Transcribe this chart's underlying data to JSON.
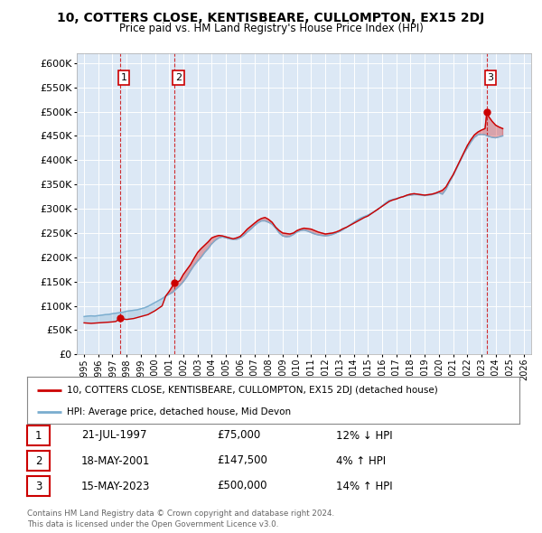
{
  "title": "10, COTTERS CLOSE, KENTISBEARE, CULLOMPTON, EX15 2DJ",
  "subtitle": "Price paid vs. HM Land Registry's House Price Index (HPI)",
  "legend_property": "10, COTTERS CLOSE, KENTISBEARE, CULLOMPTON, EX15 2DJ (detached house)",
  "legend_hpi": "HPI: Average price, detached house, Mid Devon",
  "footer": "Contains HM Land Registry data © Crown copyright and database right 2024.\nThis data is licensed under the Open Government Licence v3.0.",
  "transactions": [
    {
      "num": 1,
      "date": "21-JUL-1997",
      "price": "£75,000",
      "hpi": "12% ↓ HPI",
      "x_year": 1997.55
    },
    {
      "num": 2,
      "date": "18-MAY-2001",
      "price": "£147,500",
      "hpi": "4% ↑ HPI",
      "x_year": 2001.38
    },
    {
      "num": 3,
      "date": "15-MAY-2023",
      "price": "£500,000",
      "hpi": "14% ↑ HPI",
      "x_year": 2023.38
    }
  ],
  "property_prices": [
    [
      1995.0,
      65000
    ],
    [
      1995.25,
      64500
    ],
    [
      1995.5,
      64000
    ],
    [
      1995.75,
      64500
    ],
    [
      1996.0,
      65000
    ],
    [
      1996.25,
      65500
    ],
    [
      1996.5,
      66000
    ],
    [
      1996.75,
      66500
    ],
    [
      1997.0,
      67000
    ],
    [
      1997.25,
      68000
    ],
    [
      1997.55,
      75000
    ],
    [
      1997.75,
      73000
    ],
    [
      1998.0,
      72000
    ],
    [
      1998.25,
      73000
    ],
    [
      1998.5,
      74000
    ],
    [
      1998.75,
      76000
    ],
    [
      1999.0,
      78000
    ],
    [
      1999.25,
      80000
    ],
    [
      1999.5,
      82000
    ],
    [
      1999.75,
      86000
    ],
    [
      2000.0,
      90000
    ],
    [
      2000.25,
      95000
    ],
    [
      2000.5,
      100000
    ],
    [
      2000.75,
      120000
    ],
    [
      2001.0,
      130000
    ],
    [
      2001.38,
      147500
    ],
    [
      2001.5,
      148000
    ],
    [
      2001.75,
      152000
    ],
    [
      2002.0,
      165000
    ],
    [
      2002.25,
      175000
    ],
    [
      2002.5,
      185000
    ],
    [
      2002.75,
      198000
    ],
    [
      2003.0,
      210000
    ],
    [
      2003.25,
      218000
    ],
    [
      2003.5,
      225000
    ],
    [
      2003.75,
      232000
    ],
    [
      2004.0,
      240000
    ],
    [
      2004.25,
      243000
    ],
    [
      2004.5,
      245000
    ],
    [
      2004.75,
      244000
    ],
    [
      2005.0,
      242000
    ],
    [
      2005.25,
      240000
    ],
    [
      2005.5,
      238000
    ],
    [
      2005.75,
      240000
    ],
    [
      2006.0,
      243000
    ],
    [
      2006.25,
      250000
    ],
    [
      2006.5,
      258000
    ],
    [
      2006.75,
      264000
    ],
    [
      2007.0,
      270000
    ],
    [
      2007.25,
      276000
    ],
    [
      2007.5,
      280000
    ],
    [
      2007.75,
      282000
    ],
    [
      2008.0,
      278000
    ],
    [
      2008.25,
      272000
    ],
    [
      2008.5,
      262000
    ],
    [
      2008.75,
      255000
    ],
    [
      2009.0,
      250000
    ],
    [
      2009.25,
      249000
    ],
    [
      2009.5,
      248000
    ],
    [
      2009.75,
      250000
    ],
    [
      2010.0,
      255000
    ],
    [
      2010.25,
      258000
    ],
    [
      2010.5,
      260000
    ],
    [
      2010.75,
      259000
    ],
    [
      2011.0,
      258000
    ],
    [
      2011.25,
      255000
    ],
    [
      2011.5,
      252000
    ],
    [
      2011.75,
      250000
    ],
    [
      2012.0,
      248000
    ],
    [
      2012.25,
      249000
    ],
    [
      2012.5,
      250000
    ],
    [
      2012.75,
      252000
    ],
    [
      2013.0,
      255000
    ],
    [
      2013.25,
      259000
    ],
    [
      2013.5,
      262000
    ],
    [
      2013.75,
      266000
    ],
    [
      2014.0,
      270000
    ],
    [
      2014.25,
      274000
    ],
    [
      2014.5,
      278000
    ],
    [
      2014.75,
      282000
    ],
    [
      2015.0,
      285000
    ],
    [
      2015.25,
      290000
    ],
    [
      2015.5,
      295000
    ],
    [
      2015.75,
      300000
    ],
    [
      2016.0,
      305000
    ],
    [
      2016.25,
      310000
    ],
    [
      2016.5,
      315000
    ],
    [
      2016.75,
      318000
    ],
    [
      2017.0,
      320000
    ],
    [
      2017.25,
      323000
    ],
    [
      2017.5,
      325000
    ],
    [
      2017.75,
      328000
    ],
    [
      2018.0,
      330000
    ],
    [
      2018.25,
      331000
    ],
    [
      2018.5,
      330000
    ],
    [
      2018.75,
      329000
    ],
    [
      2019.0,
      328000
    ],
    [
      2019.25,
      329000
    ],
    [
      2019.5,
      330000
    ],
    [
      2019.75,
      332000
    ],
    [
      2020.0,
      335000
    ],
    [
      2020.25,
      338000
    ],
    [
      2020.5,
      345000
    ],
    [
      2020.75,
      358000
    ],
    [
      2021.0,
      370000
    ],
    [
      2021.25,
      385000
    ],
    [
      2021.5,
      400000
    ],
    [
      2021.75,
      415000
    ],
    [
      2022.0,
      430000
    ],
    [
      2022.25,
      442000
    ],
    [
      2022.5,
      452000
    ],
    [
      2022.75,
      458000
    ],
    [
      2023.0,
      462000
    ],
    [
      2023.25,
      465000
    ],
    [
      2023.38,
      500000
    ],
    [
      2023.5,
      490000
    ],
    [
      2023.75,
      480000
    ],
    [
      2024.0,
      472000
    ],
    [
      2024.25,
      468000
    ],
    [
      2024.5,
      465000
    ]
  ],
  "hpi_prices": [
    [
      1995.0,
      78000
    ],
    [
      1995.25,
      79000
    ],
    [
      1995.5,
      79500
    ],
    [
      1995.75,
      79000
    ],
    [
      1996.0,
      80000
    ],
    [
      1996.25,
      81000
    ],
    [
      1996.5,
      82000
    ],
    [
      1996.75,
      82500
    ],
    [
      1997.0,
      84000
    ],
    [
      1997.25,
      85000
    ],
    [
      1997.5,
      86000
    ],
    [
      1997.75,
      87000
    ],
    [
      1998.0,
      89000
    ],
    [
      1998.25,
      90000
    ],
    [
      1998.5,
      91000
    ],
    [
      1998.75,
      92000
    ],
    [
      1999.0,
      94000
    ],
    [
      1999.25,
      96000
    ],
    [
      1999.5,
      99000
    ],
    [
      1999.75,
      103000
    ],
    [
      2000.0,
      107000
    ],
    [
      2000.25,
      111000
    ],
    [
      2000.5,
      115000
    ],
    [
      2000.75,
      120000
    ],
    [
      2001.0,
      124000
    ],
    [
      2001.25,
      128000
    ],
    [
      2001.5,
      135000
    ],
    [
      2001.75,
      142000
    ],
    [
      2002.0,
      150000
    ],
    [
      2002.25,
      160000
    ],
    [
      2002.5,
      172000
    ],
    [
      2002.75,
      183000
    ],
    [
      2003.0,
      192000
    ],
    [
      2003.25,
      200000
    ],
    [
      2003.5,
      210000
    ],
    [
      2003.75,
      218000
    ],
    [
      2004.0,
      228000
    ],
    [
      2004.25,
      235000
    ],
    [
      2004.5,
      240000
    ],
    [
      2004.75,
      242000
    ],
    [
      2005.0,
      240000
    ],
    [
      2005.25,
      238000
    ],
    [
      2005.5,
      237000
    ],
    [
      2005.75,
      237000
    ],
    [
      2006.0,
      240000
    ],
    [
      2006.25,
      245000
    ],
    [
      2006.5,
      252000
    ],
    [
      2006.75,
      258000
    ],
    [
      2007.0,
      265000
    ],
    [
      2007.25,
      271000
    ],
    [
      2007.5,
      275000
    ],
    [
      2007.75,
      275000
    ],
    [
      2008.0,
      272000
    ],
    [
      2008.25,
      268000
    ],
    [
      2008.5,
      260000
    ],
    [
      2008.75,
      250000
    ],
    [
      2009.0,
      244000
    ],
    [
      2009.25,
      242000
    ],
    [
      2009.5,
      243000
    ],
    [
      2009.75,
      247000
    ],
    [
      2010.0,
      252000
    ],
    [
      2010.25,
      255000
    ],
    [
      2010.5,
      256000
    ],
    [
      2010.75,
      254000
    ],
    [
      2011.0,
      251000
    ],
    [
      2011.25,
      248000
    ],
    [
      2011.5,
      246000
    ],
    [
      2011.75,
      245000
    ],
    [
      2012.0,
      244000
    ],
    [
      2012.25,
      245000
    ],
    [
      2012.5,
      247000
    ],
    [
      2012.75,
      250000
    ],
    [
      2013.0,
      253000
    ],
    [
      2013.25,
      257000
    ],
    [
      2013.5,
      262000
    ],
    [
      2013.75,
      267000
    ],
    [
      2014.0,
      272000
    ],
    [
      2014.25,
      277000
    ],
    [
      2014.5,
      281000
    ],
    [
      2014.75,
      284000
    ],
    [
      2015.0,
      287000
    ],
    [
      2015.25,
      291000
    ],
    [
      2015.5,
      295000
    ],
    [
      2015.75,
      300000
    ],
    [
      2016.0,
      306000
    ],
    [
      2016.25,
      312000
    ],
    [
      2016.5,
      317000
    ],
    [
      2016.75,
      319000
    ],
    [
      2017.0,
      321000
    ],
    [
      2017.25,
      323000
    ],
    [
      2017.5,
      325000
    ],
    [
      2017.75,
      327000
    ],
    [
      2018.0,
      328000
    ],
    [
      2018.25,
      329000
    ],
    [
      2018.5,
      329000
    ],
    [
      2018.75,
      328000
    ],
    [
      2019.0,
      327000
    ],
    [
      2019.25,
      328000
    ],
    [
      2019.5,
      329000
    ],
    [
      2019.75,
      331000
    ],
    [
      2020.0,
      333000
    ],
    [
      2020.25,
      330000
    ],
    [
      2020.5,
      340000
    ],
    [
      2020.75,
      355000
    ],
    [
      2021.0,
      368000
    ],
    [
      2021.25,
      383000
    ],
    [
      2021.5,
      398000
    ],
    [
      2021.75,
      413000
    ],
    [
      2022.0,
      425000
    ],
    [
      2022.25,
      437000
    ],
    [
      2022.5,
      447000
    ],
    [
      2022.75,
      452000
    ],
    [
      2023.0,
      453000
    ],
    [
      2023.25,
      452000
    ],
    [
      2023.5,
      449000
    ],
    [
      2023.75,
      447000
    ],
    [
      2024.0,
      446000
    ],
    [
      2024.25,
      448000
    ],
    [
      2024.5,
      450000
    ]
  ],
  "ylim": [
    0,
    620000
  ],
  "xlim": [
    1994.5,
    2026.5
  ],
  "yticks": [
    0,
    50000,
    100000,
    150000,
    200000,
    250000,
    300000,
    350000,
    400000,
    450000,
    500000,
    550000,
    600000
  ],
  "property_color": "#cc0000",
  "hpi_color": "#7aadcf",
  "background_color": "#dce8f5",
  "grid_color": "#ffffff",
  "fig_background": "#ffffff"
}
